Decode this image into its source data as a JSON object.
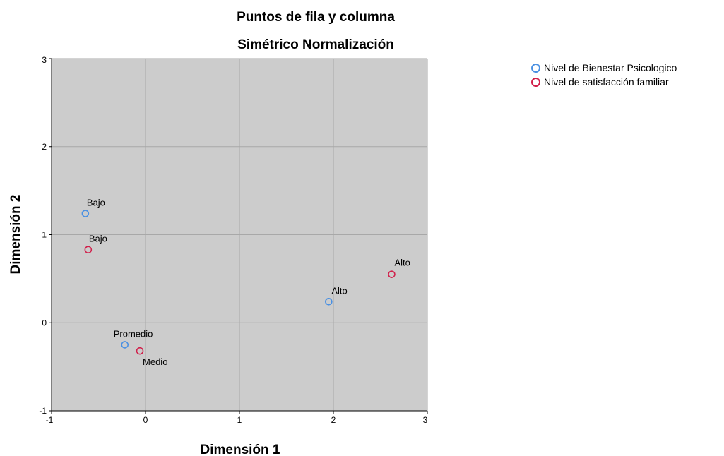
{
  "chart_data": {
    "type": "scatter",
    "title": "Puntos de fila y columna",
    "subtitle": "Simétrico Normalización",
    "xlabel": "Dimensión 1",
    "ylabel": "Dimensión 2",
    "xlim": [
      -1,
      3
    ],
    "ylim": [
      -1,
      3
    ],
    "xticks": [
      -1,
      0,
      1,
      2,
      3
    ],
    "yticks": [
      -1,
      0,
      1,
      2,
      3
    ],
    "grid": true,
    "legend_position": "top-right, outside plot",
    "series": [
      {
        "name": "Nivel de Bienestar Psicologico",
        "color": "#4a90e2",
        "points": [
          {
            "label": "Bajo",
            "x": -0.64,
            "y": 1.24
          },
          {
            "label": "Promedio",
            "x": -0.22,
            "y": -0.25
          },
          {
            "label": "Alto",
            "x": 1.95,
            "y": 0.24
          }
        ]
      },
      {
        "name": "Nivel de satisfacción familiar",
        "color": "#d1204b",
        "points": [
          {
            "label": "Bajo",
            "x": -0.61,
            "y": 0.83
          },
          {
            "label": "Medio",
            "x": -0.06,
            "y": -0.32
          },
          {
            "label": "Alto",
            "x": 2.62,
            "y": 0.55
          }
        ]
      }
    ]
  }
}
